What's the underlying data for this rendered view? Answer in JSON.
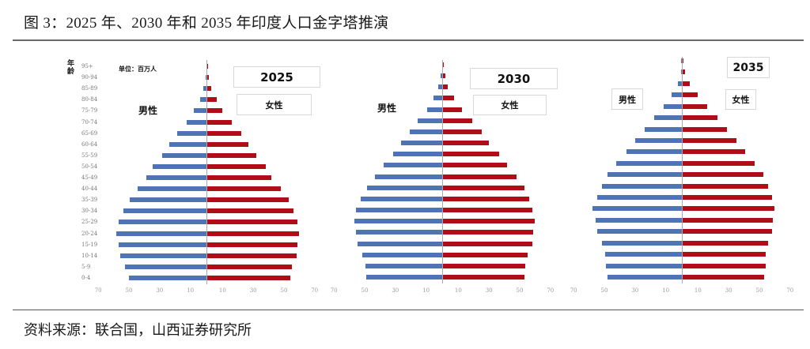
{
  "title": "图 3：2025 年、2030 年和 2035 年印度人口金字塔推演",
  "source": "资料来源：联合国，山西证券研究所",
  "unit_label": "单位：百万人",
  "age_header": "年龄",
  "colors": {
    "male": "#4f74b5",
    "female": "#b00d19",
    "axis": "#a9a9b0"
  },
  "chart_data": [
    {
      "type": "bar",
      "subtype": "population-pyramid",
      "title": "2025",
      "male_label": "男性",
      "female_label": "女性",
      "unit": "百万人",
      "categories": [
        "95+",
        "90-94",
        "85-89",
        "80-84",
        "75-79",
        "70-74",
        "65-69",
        "60-64",
        "55-59",
        "50-54",
        "45-49",
        "40-44",
        "35-39",
        "30-34",
        "25-29",
        "20-24",
        "15-19",
        "10-14",
        "5-9",
        "0-4"
      ],
      "series": [
        {
          "name": "男性",
          "values": [
            0.2,
            0.5,
            2,
            4,
            8,
            13,
            19,
            24,
            29,
            35,
            39,
            45,
            50,
            54,
            57,
            59,
            57,
            56,
            53,
            50.5
          ]
        },
        {
          "name": "女性",
          "values": [
            0.2,
            0.8,
            2.5,
            6,
            10,
            16,
            22,
            27,
            32,
            38,
            42,
            48,
            53,
            56,
            59,
            60,
            59,
            58,
            55,
            54
          ]
        }
      ],
      "xticks": [
        70,
        50,
        30,
        10,
        10,
        30,
        50,
        70
      ],
      "xlim": [
        -70,
        70
      ],
      "grid": false
    },
    {
      "type": "bar",
      "subtype": "population-pyramid",
      "title": "2030",
      "male_label": "男性",
      "female_label": "女性",
      "unit": "百万人",
      "categories": [
        "95+",
        "90-94",
        "85-89",
        "80-84",
        "75-79",
        "70-74",
        "65-69",
        "60-64",
        "55-59",
        "50-54",
        "45-49",
        "40-44",
        "35-39",
        "30-34",
        "25-29",
        "20-24",
        "15-19",
        "10-14",
        "5-9",
        "0-4"
      ],
      "series": [
        {
          "name": "男性",
          "values": [
            0.2,
            1,
            2.5,
            5.5,
            10,
            16,
            21,
            27,
            32,
            38,
            44,
            49,
            53,
            56,
            57,
            56,
            55,
            52,
            50,
            49.5
          ]
        },
        {
          "name": "女性",
          "values": [
            0.2,
            1.5,
            3,
            7,
            12.5,
            19,
            25,
            30,
            36.5,
            42,
            48,
            53,
            56,
            58,
            60,
            59,
            58,
            55,
            53.5,
            53
          ]
        }
      ],
      "xticks": [
        70,
        50,
        30,
        10,
        10,
        30,
        50,
        70
      ],
      "xlim": [
        -70,
        70
      ],
      "grid": false
    },
    {
      "type": "bar",
      "subtype": "population-pyramid",
      "title": "2035",
      "male_label": "男性",
      "female_label": "女性",
      "unit": "百万人",
      "categories": [
        "95+",
        "90-94",
        "85-89",
        "80-84",
        "75-79",
        "70-74",
        "65-69",
        "60-64",
        "55-59",
        "50-54",
        "45-49",
        "40-44",
        "35-39",
        "30-34",
        "25-29",
        "20-24",
        "15-19",
        "10-14",
        "5-9",
        "0-4"
      ],
      "series": [
        {
          "name": "男性",
          "values": [
            0.3,
            0.5,
            2.5,
            6.5,
            12,
            18,
            24,
            30.5,
            36,
            43,
            48.5,
            52,
            55,
            58,
            56,
            55,
            52,
            50,
            49.5,
            48.5
          ]
        },
        {
          "name": "女性",
          "values": [
            0.3,
            1.5,
            4.5,
            10,
            16,
            22.5,
            29,
            35,
            40.5,
            47,
            52.5,
            55.5,
            58,
            60,
            59,
            58,
            55.5,
            54,
            54,
            53
          ]
        }
      ],
      "xticks": [
        70,
        50,
        30,
        10,
        10,
        30,
        50,
        70
      ],
      "xlim": [
        -70,
        70
      ],
      "grid": false
    }
  ]
}
